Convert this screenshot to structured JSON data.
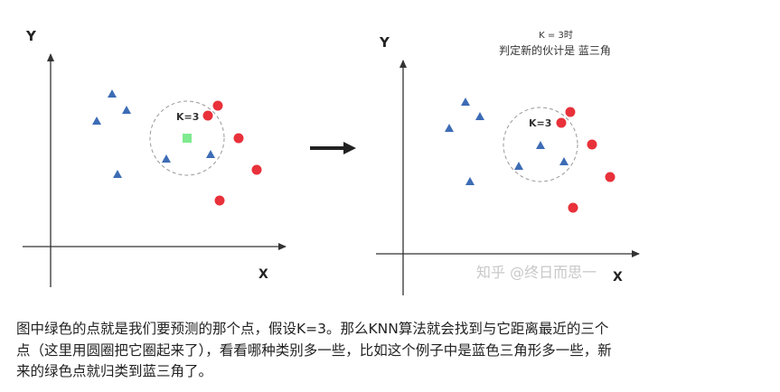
{
  "left_diagram": {
    "y_label": "Y",
    "x_label": "X",
    "k_label": "K=3"
  },
  "right_diagram": {
    "y_label": "Y",
    "x_label": "X",
    "k_label": "K=3",
    "title_line1": "K = 3时",
    "title_line2": "判定新的伙计是 蓝三角",
    "watermark": "知乎 @终日而思一"
  },
  "colors": {
    "triangle": "#3d6cb5",
    "circle": "#e8313a",
    "new_point": "#7fea8f",
    "axis": "#333333"
  },
  "paragraph": {
    "lines": [
      "图中绿色的点就是我们要预测的那个点，假设K=3。那么KNN算法就会找到与它距离最近的三个",
      "点（这里用圆圈把它圈起来了），看看哪种类别多一些，比如这个例子中是蓝色三角形多一些，新",
      "来的绿色点就归类到蓝三角了。"
    ]
  }
}
